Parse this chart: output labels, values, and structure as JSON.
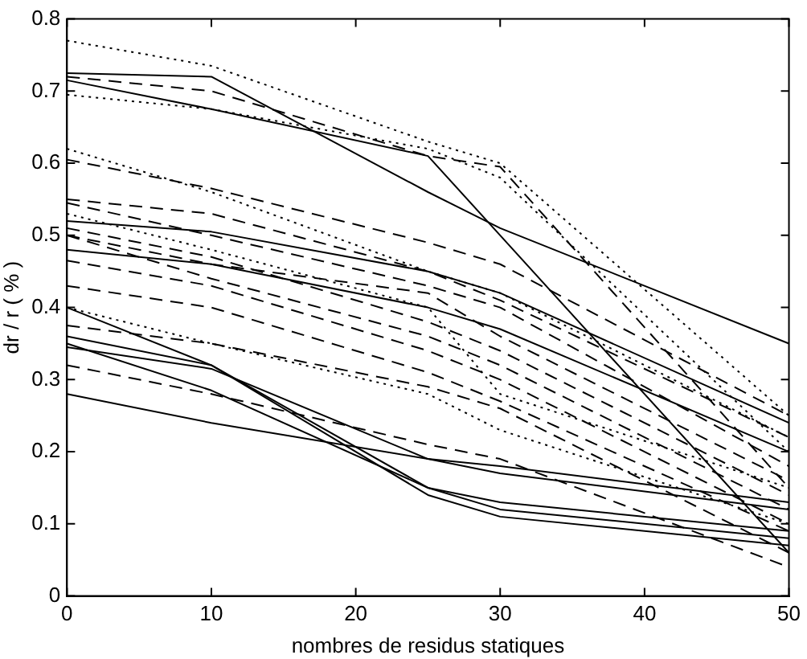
{
  "chart_data": {
    "type": "line",
    "xlabel": "nombres de residus statiques",
    "ylabel": "dr / r ( % )",
    "x": [
      0,
      10,
      25,
      30,
      50
    ],
    "xlim": [
      0,
      50
    ],
    "xticks": [
      0,
      10,
      20,
      30,
      40,
      50
    ],
    "ylim": [
      0,
      0.8
    ],
    "yticks": [
      0,
      0.1,
      0.2,
      0.3,
      0.4,
      0.5,
      0.6,
      0.7,
      0.8
    ],
    "grid": false,
    "legend": false,
    "marker": "none",
    "series": [
      {
        "color": "#000000",
        "line_style": "solid",
        "values": [
          0.725,
          0.72,
          0.56,
          0.51,
          0.35
        ]
      },
      {
        "color": "#000000",
        "line_style": "solid",
        "values": [
          0.715,
          0.675,
          0.61,
          0.5,
          0.06
        ]
      },
      {
        "color": "#000000",
        "line_style": "solid",
        "values": [
          0.52,
          0.505,
          0.45,
          0.42,
          0.24
        ]
      },
      {
        "color": "#000000",
        "line_style": "solid",
        "values": [
          0.48,
          0.46,
          0.4,
          0.37,
          0.2
        ]
      },
      {
        "color": "#000000",
        "line_style": "solid",
        "values": [
          0.4,
          0.32,
          0.15,
          0.12,
          0.08
        ]
      },
      {
        "color": "#000000",
        "line_style": "solid",
        "values": [
          0.36,
          0.32,
          0.14,
          0.11,
          0.07
        ]
      },
      {
        "color": "#000000",
        "line_style": "solid",
        "values": [
          0.35,
          0.285,
          0.15,
          0.13,
          0.09
        ]
      },
      {
        "color": "#000000",
        "line_style": "solid",
        "values": [
          0.345,
          0.315,
          0.19,
          0.17,
          0.12
        ]
      },
      {
        "color": "#000000",
        "line_style": "solid",
        "values": [
          0.28,
          0.24,
          0.19,
          0.18,
          0.13
        ]
      },
      {
        "color": "#000000",
        "line_style": "dotted",
        "values": [
          0.77,
          0.735,
          0.63,
          0.6,
          0.25
        ]
      },
      {
        "color": "#000000",
        "line_style": "dotted",
        "values": [
          0.695,
          0.675,
          0.62,
          0.58,
          0.2
        ]
      },
      {
        "color": "#000000",
        "line_style": "dotted",
        "values": [
          0.62,
          0.56,
          0.45,
          0.42,
          0.22
        ]
      },
      {
        "color": "#000000",
        "line_style": "dotted",
        "values": [
          0.53,
          0.48,
          0.4,
          0.28,
          0.15
        ]
      },
      {
        "color": "#000000",
        "line_style": "dotted",
        "values": [
          0.4,
          0.35,
          0.28,
          0.23,
          0.1
        ]
      },
      {
        "color": "#000000",
        "line_style": "dashed",
        "values": [
          0.72,
          0.7,
          0.61,
          0.595,
          0.15
        ]
      },
      {
        "color": "#000000",
        "line_style": "dashed",
        "values": [
          0.605,
          0.565,
          0.49,
          0.46,
          0.25
        ]
      },
      {
        "color": "#000000",
        "line_style": "dashed",
        "values": [
          0.55,
          0.53,
          0.45,
          0.41,
          0.22
        ]
      },
      {
        "color": "#000000",
        "line_style": "dashed",
        "values": [
          0.545,
          0.5,
          0.43,
          0.4,
          0.18
        ]
      },
      {
        "color": "#000000",
        "line_style": "dashed",
        "values": [
          0.51,
          0.47,
          0.38,
          0.34,
          0.14
        ]
      },
      {
        "color": "#000000",
        "line_style": "dashed",
        "values": [
          0.5,
          0.44,
          0.36,
          0.32,
          0.12
        ]
      },
      {
        "color": "#000000",
        "line_style": "dashed",
        "values": [
          0.5,
          0.46,
          0.42,
          0.36,
          0.16
        ]
      },
      {
        "color": "#000000",
        "line_style": "dashed",
        "values": [
          0.465,
          0.43,
          0.34,
          0.3,
          0.1
        ]
      },
      {
        "color": "#000000",
        "line_style": "dashed",
        "values": [
          0.43,
          0.4,
          0.31,
          0.27,
          0.09
        ]
      },
      {
        "color": "#000000",
        "line_style": "dashed",
        "values": [
          0.375,
          0.35,
          0.29,
          0.26,
          0.06
        ]
      },
      {
        "color": "#000000",
        "line_style": "dashed",
        "values": [
          0.32,
          0.28,
          0.21,
          0.19,
          0.04
        ]
      }
    ]
  }
}
